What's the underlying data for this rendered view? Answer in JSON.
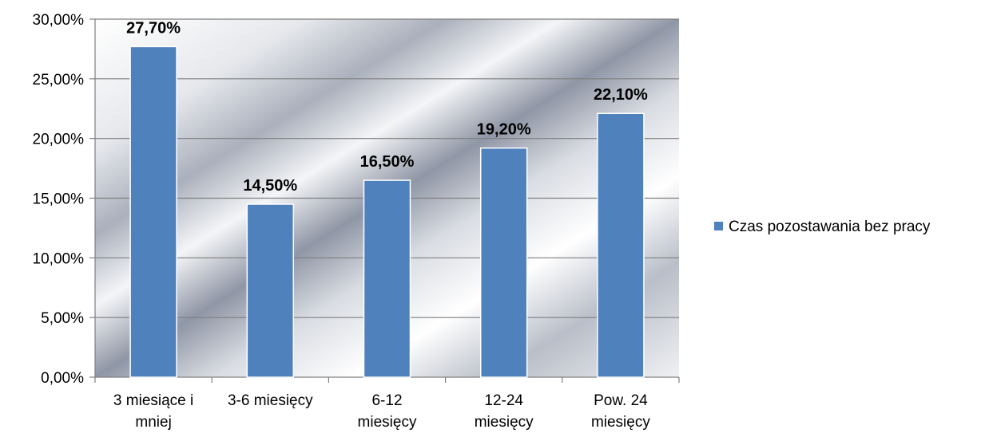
{
  "chart_data": {
    "type": "bar",
    "categories": [
      [
        "3 miesiące i",
        "mniej"
      ],
      [
        "3-6 miesięcy"
      ],
      [
        "6-12",
        "miesięcy"
      ],
      [
        "12-24",
        "miesięcy"
      ],
      [
        "Pow. 24",
        "miesięcy"
      ]
    ],
    "series": [
      {
        "name": "Czas pozostawania bez pracy",
        "values": [
          27.7,
          14.5,
          16.5,
          19.2,
          22.1
        ],
        "data_labels": [
          "27,70%",
          "14,50%",
          "16,50%",
          "19,20%",
          "22,10%"
        ],
        "color": "#4f81bd"
      }
    ],
    "y_ticks": [
      "0,00%",
      "5,00%",
      "10,00%",
      "15,00%",
      "20,00%",
      "25,00%",
      "30,00%"
    ],
    "ylim": [
      0,
      30
    ],
    "grid": true,
    "legend": "right"
  }
}
